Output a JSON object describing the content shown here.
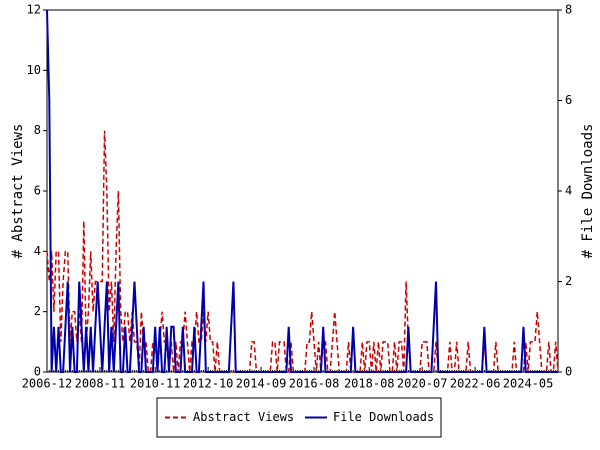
{
  "chart_data": {
    "type": "line",
    "y_label": "# Abstract Views",
    "y2_label": "# File Downloads",
    "categories": [
      "2006-12",
      null,
      null,
      null,
      null,
      null,
      null,
      null,
      null,
      null,
      null,
      null,
      null,
      null,
      null,
      null,
      null,
      null,
      null,
      null,
      null,
      null,
      null,
      "2008-11",
      null,
      null,
      null,
      null,
      null,
      null,
      null,
      null,
      null,
      null,
      null,
      null,
      null,
      null,
      null,
      null,
      null,
      null,
      null,
      null,
      null,
      null,
      null,
      "2010-11",
      null,
      null,
      null,
      null,
      null,
      null,
      null,
      null,
      null,
      null,
      null,
      null,
      null,
      null,
      null,
      null,
      null,
      null,
      null,
      null,
      null,
      null,
      "2012-10",
      null,
      null,
      null,
      null,
      null,
      null,
      null,
      null,
      null,
      null,
      null,
      null,
      null,
      null,
      null,
      null,
      null,
      null,
      null,
      null,
      null,
      null,
      "2014-09",
      null,
      null,
      null,
      null,
      null,
      null,
      null,
      null,
      null,
      null,
      null,
      null,
      null,
      null,
      null,
      null,
      null,
      null,
      null,
      null,
      null,
      null,
      "2016-08",
      null,
      null,
      null,
      null,
      null,
      null,
      null,
      null,
      null,
      null,
      null,
      null,
      null,
      null,
      null,
      null,
      null,
      null,
      null,
      null,
      null,
      null,
      null,
      "2018-08",
      null,
      null,
      null,
      null,
      null,
      null,
      null,
      null,
      null,
      null,
      null,
      null,
      null,
      null,
      null,
      null,
      null,
      null,
      null,
      null,
      null,
      null,
      "2020-07",
      null,
      null,
      null,
      null,
      null,
      null,
      null,
      null,
      null,
      null,
      null,
      null,
      null,
      null,
      null,
      null,
      null,
      null,
      null,
      null,
      null,
      null,
      "2022-06",
      null,
      null,
      null,
      null,
      null,
      null,
      null,
      null,
      null,
      null,
      null,
      null,
      null,
      null,
      null,
      null,
      null,
      null,
      null,
      null,
      null,
      null,
      "2024-05",
      null,
      null,
      null,
      null,
      null,
      null,
      null,
      null,
      null,
      null,
      null,
      null,
      null
    ],
    "series": [
      {
        "name": "Abstract Views",
        "color": "#cc0000",
        "dash": true,
        "values": [
          4,
          3,
          4,
          2,
          4,
          4,
          1,
          3,
          4,
          4,
          1,
          2,
          2,
          1,
          2,
          1,
          5,
          1,
          2,
          4,
          2,
          3,
          3,
          3,
          3,
          8,
          6,
          2,
          3,
          1,
          4,
          6,
          2,
          1,
          2,
          2,
          1,
          2,
          1,
          1,
          0,
          2,
          1,
          1,
          0,
          0,
          1,
          1,
          0,
          1,
          2,
          1,
          1,
          0,
          1,
          0,
          1,
          0,
          1,
          1,
          2,
          1,
          0,
          1,
          1,
          2,
          1,
          1,
          2,
          1,
          2,
          1,
          1,
          0,
          1,
          0,
          0,
          0,
          0,
          0,
          0,
          0,
          0,
          0,
          0,
          0,
          0,
          0,
          0,
          1,
          1,
          0,
          0,
          0,
          0,
          0,
          0,
          0,
          1,
          1,
          0,
          1,
          1,
          1,
          0,
          0,
          1,
          0,
          0,
          0,
          0,
          0,
          0,
          1,
          1,
          2,
          1,
          0,
          1,
          0,
          1,
          1,
          0,
          0,
          1,
          2,
          1,
          0,
          0,
          0,
          0,
          1,
          0,
          0,
          0,
          0,
          0,
          1,
          0,
          1,
          1,
          0,
          1,
          0,
          1,
          0,
          1,
          1,
          1,
          0,
          0,
          1,
          0,
          1,
          1,
          0,
          3,
          1,
          0,
          0,
          0,
          0,
          0,
          1,
          1,
          1,
          0,
          0,
          0,
          1,
          0,
          0,
          0,
          0,
          0,
          1,
          0,
          0,
          1,
          0,
          0,
          0,
          0,
          1,
          0,
          0,
          0,
          0,
          0,
          0,
          1,
          0,
          0,
          0,
          0,
          1,
          0,
          0,
          0,
          0,
          0,
          0,
          0,
          1,
          0,
          0,
          0,
          0,
          1,
          0,
          1,
          1,
          1,
          2,
          1,
          0,
          0,
          0,
          1,
          0,
          0,
          1,
          0
        ]
      },
      {
        "name": "File Downloads",
        "color": "#0000aa",
        "dash": false,
        "axis": "y2",
        "values": [
          8,
          6,
          0,
          1,
          0,
          1,
          0,
          0,
          1,
          2,
          0,
          1,
          0,
          0,
          2,
          1,
          0,
          1,
          0,
          1,
          0,
          1,
          2,
          1,
          0,
          1,
          2,
          0,
          1,
          0,
          1,
          2,
          0,
          0,
          1,
          0,
          0,
          1,
          2,
          1,
          0,
          0,
          1,
          0,
          0,
          0,
          0,
          1,
          0,
          1,
          0,
          0,
          1,
          0,
          1,
          1,
          0,
          0,
          0,
          1,
          0,
          0,
          0,
          0,
          1,
          0,
          0,
          1,
          2,
          0,
          0,
          0,
          0,
          0,
          0,
          0,
          0,
          0,
          0,
          0,
          1,
          2,
          0,
          0,
          0,
          0,
          0,
          0,
          0,
          0,
          0,
          0,
          0,
          0,
          0,
          0,
          0,
          0,
          0,
          0,
          0,
          0,
          0,
          0,
          0,
          1,
          0,
          0,
          0,
          0,
          0,
          0,
          0,
          0,
          0,
          0,
          0,
          0,
          0,
          0,
          1,
          0,
          0,
          0,
          0,
          0,
          0,
          0,
          0,
          0,
          0,
          0,
          0,
          1,
          0,
          0,
          0,
          0,
          0,
          0,
          0,
          0,
          0,
          0,
          0,
          0,
          0,
          0,
          0,
          0,
          0,
          0,
          0,
          0,
          0,
          0,
          0,
          1,
          0,
          0,
          0,
          0,
          0,
          0,
          0,
          0,
          0,
          0,
          1,
          2,
          0,
          0,
          0,
          0,
          0,
          0,
          0,
          0,
          0,
          0,
          0,
          0,
          0,
          0,
          0,
          0,
          0,
          0,
          0,
          0,
          1,
          0,
          0,
          0,
          0,
          0,
          0,
          0,
          0,
          0,
          0,
          0,
          0,
          0,
          0,
          0,
          0,
          1,
          0,
          0,
          0,
          0,
          0,
          0,
          0,
          0,
          0,
          0,
          0,
          0,
          0,
          0,
          0
        ]
      }
    ],
    "ylim": [
      0,
      12
    ],
    "yticks": [
      0,
      2,
      4,
      6,
      8,
      10,
      12
    ],
    "y2lim": [
      0,
      8
    ],
    "y2ticks": [
      0,
      2,
      4,
      6,
      8
    ],
    "legend": "bottom"
  }
}
